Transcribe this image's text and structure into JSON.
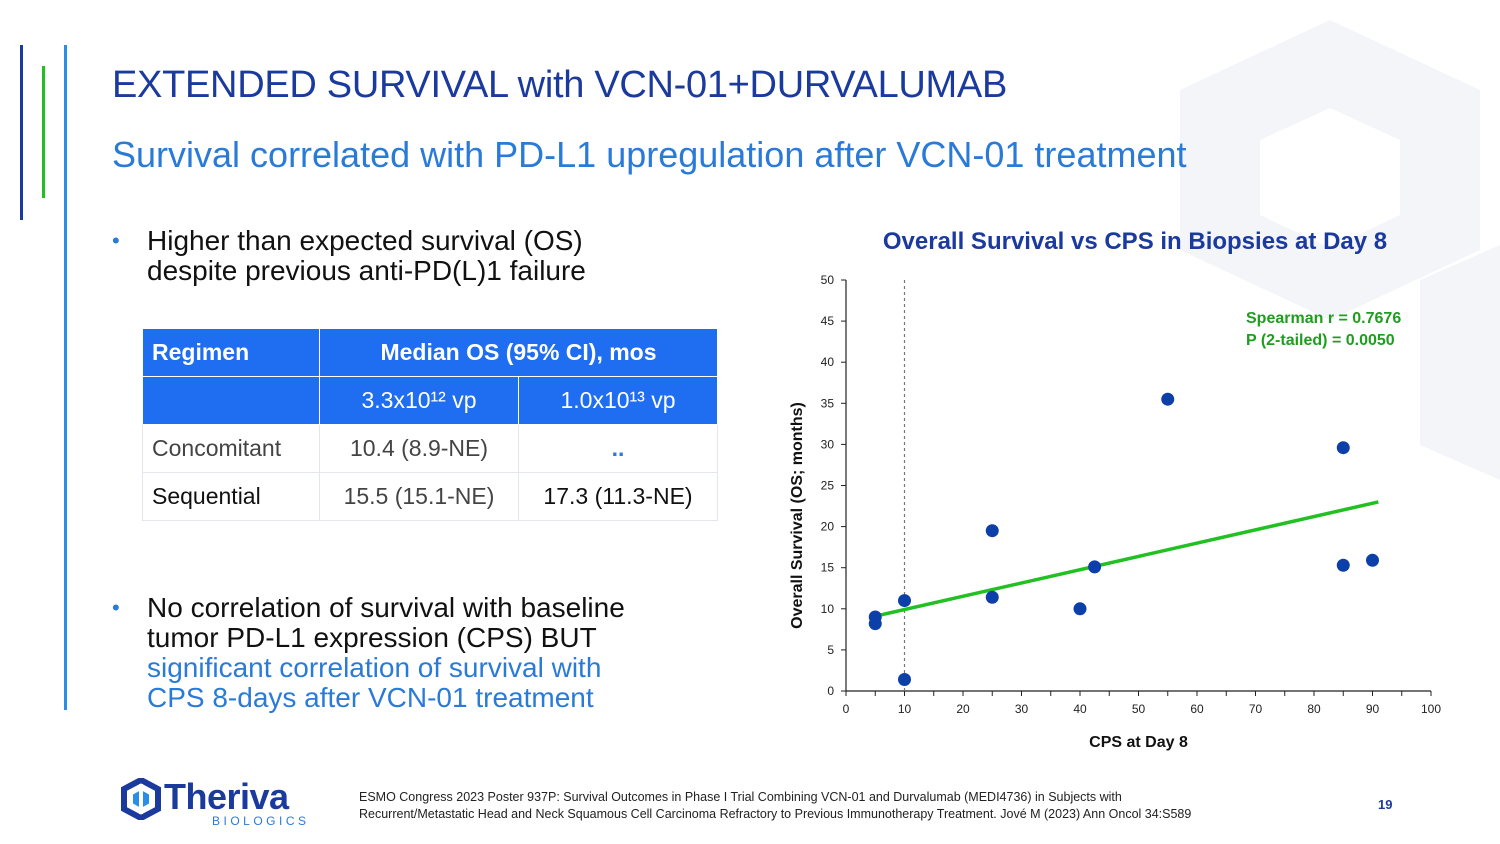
{
  "slide": {
    "title": "EXTENDED SURVIVAL with VCN-01+DURVALUMAB",
    "subtitle": "Survival correlated with PD-L1 upregulation after VCN-01 treatment",
    "page_number": "19"
  },
  "bullets": [
    {
      "line1": "Higher than expected survival (OS)",
      "line2": "despite previous anti-PD(L)1 failure"
    },
    {
      "line1": "No correlation of survival with baseline",
      "line2": "tumor PD-L1 expression (CPS) BUT",
      "line3": "significant correlation of survival with",
      "line4": "CPS 8-days after VCN-01 treatment"
    }
  ],
  "table": {
    "headers": {
      "regimen": "Regimen",
      "median_os": "Median OS (95% CI), mos"
    },
    "dose_headers": [
      "3.3x10¹²  vp",
      "1.0x10¹³ vp"
    ],
    "rows": [
      {
        "regimen": "Concomitant",
        "low_dose": "10.4 (8.9-NE)",
        "high_dose": ".."
      },
      {
        "regimen": "Sequential",
        "low_dose": "15.5 (15.1-NE)",
        "high_dose": "17.3 (11.3-NE)"
      }
    ]
  },
  "chart_data": {
    "type": "scatter",
    "title": "Overall Survival vs CPS in Biopsies at Day 8",
    "xlabel": "CPS at Day 8",
    "ylabel": "Overall Survival (OS; months)",
    "xlim": [
      0,
      100
    ],
    "ylim": [
      0,
      50
    ],
    "x_ticks": [
      0,
      10,
      20,
      30,
      40,
      50,
      60,
      70,
      80,
      90,
      100
    ],
    "y_ticks": [
      0,
      5,
      10,
      15,
      20,
      25,
      30,
      35,
      40,
      45,
      50
    ],
    "grid": false,
    "points": [
      {
        "x": 5,
        "y": 9
      },
      {
        "x": 5,
        "y": 8.2
      },
      {
        "x": 10,
        "y": 11
      },
      {
        "x": 10,
        "y": 1.4
      },
      {
        "x": 25,
        "y": 19.5
      },
      {
        "x": 25,
        "y": 11.4
      },
      {
        "x": 40,
        "y": 10
      },
      {
        "x": 42.5,
        "y": 15.1
      },
      {
        "x": 55,
        "y": 35.5
      },
      {
        "x": 85,
        "y": 29.6
      },
      {
        "x": 85,
        "y": 15.3
      },
      {
        "x": 90,
        "y": 15.9
      }
    ],
    "trend_line": {
      "x": [
        5,
        91
      ],
      "y": [
        9.1,
        23
      ]
    },
    "reference_line_x": 10,
    "annotation": [
      "Spearman r = 0.7676",
      "P (2-tailed) = 0.0050"
    ],
    "colors": {
      "points": "#0d3fa8",
      "trend": "#22c022",
      "annotation": "#1e9e1e",
      "reference": "#777777"
    }
  },
  "logo": {
    "name": "Theriva",
    "sub": "BIOLOGICS",
    "icon": "theriva-logo-icon"
  },
  "footnote": {
    "line1": "ESMO Congress 2023 Poster 937P: Survival Outcomes in Phase I Trial Combining VCN-01 and Durvalumab (MEDI4736) in Subjects with",
    "line2": "Recurrent/Metastatic Head and Neck Squamous Cell Carcinoma Refractory to Previous Immunotherapy Treatment. Jové M (2023) Ann Oncol 34:S589"
  },
  "colors": {
    "primary": "#1b3a9e",
    "accent": "#2a7ad8",
    "table_header": "#1f6ef2",
    "green_bar": "#22c022"
  }
}
